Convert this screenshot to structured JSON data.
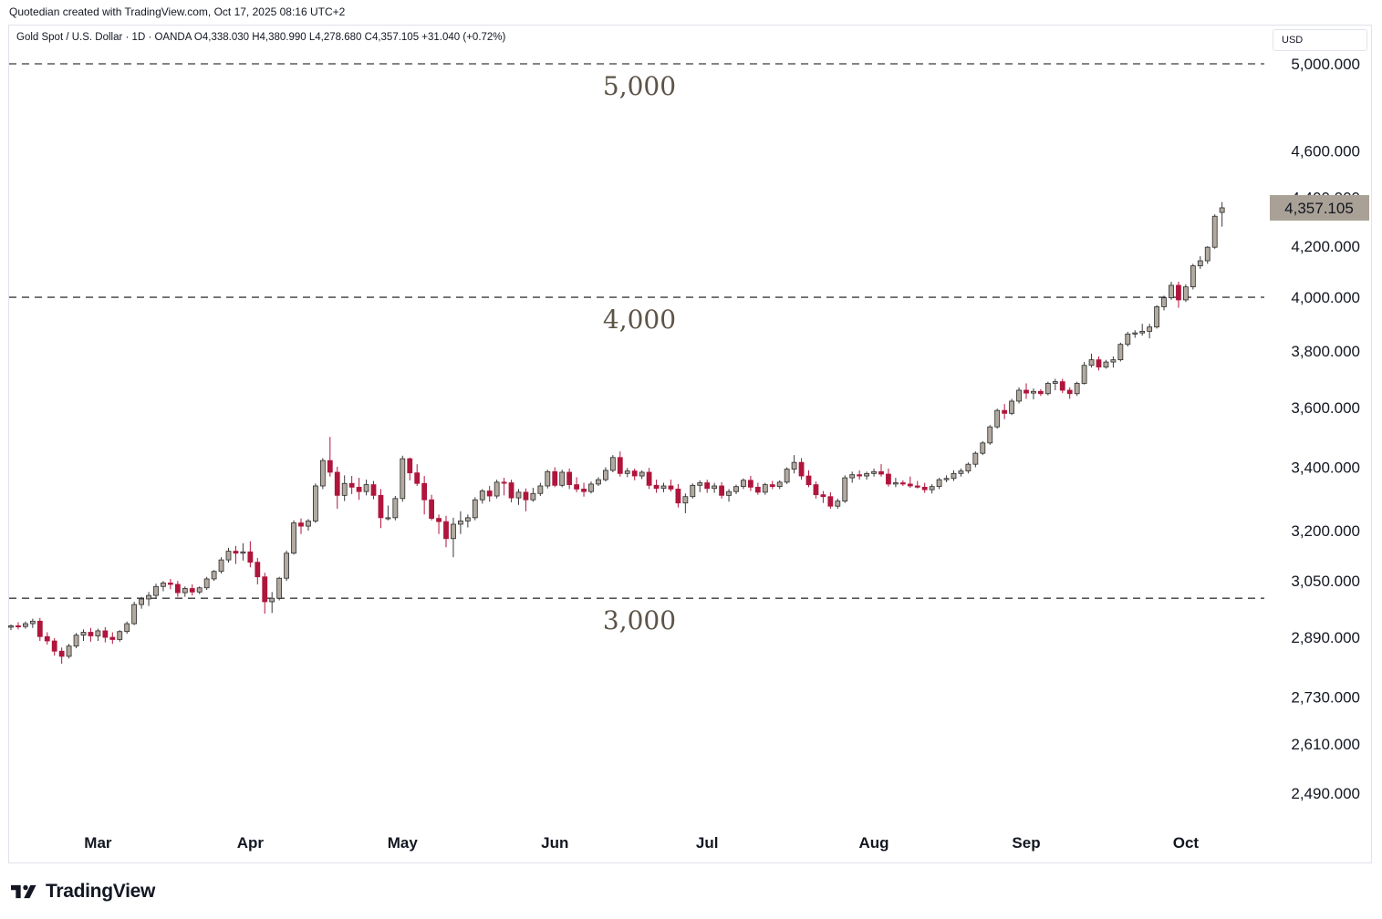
{
  "header": {
    "created_text": "Quotedian created with TradingView.com, Oct 17, 2025 08:16 UTC+2"
  },
  "legend": {
    "text": "Gold Spot / U.S. Dollar · 1D · OANDA  O4,338.030  H4,380.990  L4,278.680  C4,357.105  +31.040 (+0.72%)"
  },
  "currency_label": "USD",
  "brand": {
    "name": "TradingView",
    "logo_icon": "tradingview-logo-icon"
  },
  "colors": {
    "up_body": "#b2aaa0",
    "down_body": "#b0153c",
    "wick": "#3a3a3a",
    "price_tag": "#a9a196",
    "level_line": "#3a3a3a",
    "annotation_text": "#5d5448",
    "axis_text": "#131722"
  },
  "chart_data": {
    "type": "candlestick",
    "title": "Gold Spot / U.S. Dollar · 1D · OANDA",
    "x_axis": "time",
    "y_scale": "log",
    "ylim": [
      2400,
      5100
    ],
    "y_ticks": [
      "5,000.000",
      "4,600.000",
      "4,400.000",
      "4,200.000",
      "4,000.000",
      "3,800.000",
      "3,600.000",
      "3,400.000",
      "3,200.000",
      "3,050.000",
      "2,890.000",
      "2,730.000",
      "2,610.000",
      "2,490.000"
    ],
    "x_ticks": [
      {
        "label": "Mar",
        "index": 12
      },
      {
        "label": "Apr",
        "index": 33
      },
      {
        "label": "May",
        "index": 54
      },
      {
        "label": "Jun",
        "index": 75
      },
      {
        "label": "Jul",
        "index": 96
      },
      {
        "label": "Aug",
        "index": 119
      },
      {
        "label": "Sep",
        "index": 140
      },
      {
        "label": "Oct",
        "index": 162
      }
    ],
    "last_price": {
      "label": "4,357.105",
      "value": 4357.105
    },
    "levels": [
      {
        "value": 5000,
        "label": "5,000"
      },
      {
        "value": 4000,
        "label": "4,000"
      },
      {
        "value": 3000,
        "label": "3,000"
      }
    ],
    "ohlc": [
      [
        2918,
        2926,
        2910,
        2922
      ],
      [
        2922,
        2932,
        2912,
        2920
      ],
      [
        2920,
        2934,
        2914,
        2928
      ],
      [
        2928,
        2942,
        2916,
        2935
      ],
      [
        2935,
        2944,
        2880,
        2892
      ],
      [
        2892,
        2904,
        2870,
        2880
      ],
      [
        2880,
        2888,
        2840,
        2852
      ],
      [
        2852,
        2862,
        2818,
        2838
      ],
      [
        2838,
        2872,
        2832,
        2866
      ],
      [
        2866,
        2902,
        2860,
        2896
      ],
      [
        2896,
        2912,
        2880,
        2904
      ],
      [
        2904,
        2916,
        2878,
        2894
      ],
      [
        2894,
        2914,
        2880,
        2908
      ],
      [
        2908,
        2918,
        2876,
        2890
      ],
      [
        2890,
        2904,
        2872,
        2884
      ],
      [
        2884,
        2910,
        2878,
        2906
      ],
      [
        2906,
        2934,
        2900,
        2928
      ],
      [
        2928,
        2990,
        2924,
        2982
      ],
      [
        2982,
        3004,
        2970,
        2998
      ],
      [
        2998,
        3018,
        2978,
        3008
      ],
      [
        3008,
        3042,
        3000,
        3034
      ],
      [
        3034,
        3050,
        3020,
        3044
      ],
      [
        3044,
        3056,
        3026,
        3040
      ],
      [
        3040,
        3050,
        3004,
        3016
      ],
      [
        3016,
        3034,
        3004,
        3028
      ],
      [
        3028,
        3040,
        3008,
        3018
      ],
      [
        3018,
        3034,
        3012,
        3030
      ],
      [
        3030,
        3062,
        3024,
        3056
      ],
      [
        3056,
        3082,
        3050,
        3078
      ],
      [
        3078,
        3120,
        3072,
        3112
      ],
      [
        3112,
        3148,
        3104,
        3138
      ],
      [
        3138,
        3154,
        3100,
        3132
      ],
      [
        3132,
        3162,
        3110,
        3136
      ],
      [
        3136,
        3168,
        3090,
        3105
      ],
      [
        3105,
        3118,
        3040,
        3062
      ],
      [
        3062,
        3074,
        2956,
        2990
      ],
      [
        2990,
        3018,
        2958,
        3000
      ],
      [
        3000,
        3062,
        2994,
        3058
      ],
      [
        3058,
        3140,
        3050,
        3132
      ],
      [
        3132,
        3232,
        3128,
        3224
      ],
      [
        3224,
        3238,
        3190,
        3214
      ],
      [
        3214,
        3236,
        3200,
        3230
      ],
      [
        3230,
        3348,
        3224,
        3340
      ],
      [
        3340,
        3430,
        3330,
        3422
      ],
      [
        3422,
        3500,
        3370,
        3384
      ],
      [
        3384,
        3402,
        3268,
        3310
      ],
      [
        3310,
        3374,
        3292,
        3348
      ],
      [
        3348,
        3372,
        3314,
        3336
      ],
      [
        3336,
        3366,
        3296,
        3322
      ],
      [
        3322,
        3360,
        3310,
        3344
      ],
      [
        3344,
        3356,
        3298,
        3310
      ],
      [
        3310,
        3330,
        3208,
        3240
      ],
      [
        3240,
        3278,
        3232,
        3240
      ],
      [
        3240,
        3308,
        3232,
        3300
      ],
      [
        3300,
        3438,
        3290,
        3428
      ],
      [
        3428,
        3432,
        3358,
        3382
      ],
      [
        3382,
        3410,
        3340,
        3348
      ],
      [
        3348,
        3372,
        3250,
        3296
      ],
      [
        3296,
        3312,
        3232,
        3238
      ],
      [
        3238,
        3250,
        3190,
        3228
      ],
      [
        3228,
        3246,
        3150,
        3176
      ],
      [
        3176,
        3240,
        3120,
        3220
      ],
      [
        3220,
        3260,
        3190,
        3230
      ],
      [
        3230,
        3250,
        3210,
        3240
      ],
      [
        3240,
        3304,
        3232,
        3296
      ],
      [
        3296,
        3330,
        3284,
        3324
      ],
      [
        3324,
        3340,
        3290,
        3308
      ],
      [
        3308,
        3360,
        3300,
        3352
      ],
      [
        3352,
        3366,
        3310,
        3350
      ],
      [
        3350,
        3360,
        3288,
        3302
      ],
      [
        3302,
        3330,
        3280,
        3320
      ],
      [
        3320,
        3332,
        3260,
        3296
      ],
      [
        3296,
        3334,
        3290,
        3316
      ],
      [
        3316,
        3350,
        3308,
        3340
      ],
      [
        3340,
        3392,
        3332,
        3386
      ],
      [
        3386,
        3400,
        3336,
        3342
      ],
      [
        3342,
        3392,
        3336,
        3384
      ],
      [
        3384,
        3396,
        3330,
        3344
      ],
      [
        3344,
        3368,
        3320,
        3330
      ],
      [
        3330,
        3350,
        3306,
        3322
      ],
      [
        3322,
        3354,
        3316,
        3346
      ],
      [
        3346,
        3368,
        3340,
        3360
      ],
      [
        3360,
        3400,
        3354,
        3390
      ],
      [
        3390,
        3440,
        3384,
        3432
      ],
      [
        3432,
        3452,
        3370,
        3380
      ],
      [
        3380,
        3398,
        3368,
        3388
      ],
      [
        3388,
        3396,
        3358,
        3372
      ],
      [
        3372,
        3390,
        3362,
        3384
      ],
      [
        3384,
        3398,
        3330,
        3342
      ],
      [
        3342,
        3360,
        3318,
        3332
      ],
      [
        3332,
        3350,
        3320,
        3340
      ],
      [
        3340,
        3360,
        3322,
        3330
      ],
      [
        3330,
        3346,
        3272,
        3286
      ],
      [
        3286,
        3316,
        3254,
        3306
      ],
      [
        3306,
        3348,
        3300,
        3342
      ],
      [
        3342,
        3358,
        3320,
        3350
      ],
      [
        3350,
        3360,
        3318,
        3332
      ],
      [
        3332,
        3350,
        3318,
        3340
      ],
      [
        3340,
        3352,
        3300,
        3310
      ],
      [
        3310,
        3330,
        3290,
        3322
      ],
      [
        3322,
        3344,
        3314,
        3338
      ],
      [
        3338,
        3364,
        3330,
        3358
      ],
      [
        3358,
        3372,
        3324,
        3336
      ],
      [
        3336,
        3350,
        3312,
        3320
      ],
      [
        3320,
        3350,
        3312,
        3344
      ],
      [
        3344,
        3356,
        3330,
        3338
      ],
      [
        3338,
        3358,
        3330,
        3352
      ],
      [
        3352,
        3400,
        3346,
        3394
      ],
      [
        3394,
        3440,
        3380,
        3416
      ],
      [
        3416,
        3430,
        3360,
        3372
      ],
      [
        3372,
        3390,
        3336,
        3344
      ],
      [
        3344,
        3354,
        3300,
        3312
      ],
      [
        3312,
        3324,
        3286,
        3306
      ],
      [
        3306,
        3320,
        3268,
        3276
      ],
      [
        3276,
        3300,
        3268,
        3292
      ],
      [
        3292,
        3374,
        3286,
        3366
      ],
      [
        3366,
        3386,
        3350,
        3376
      ],
      [
        3376,
        3390,
        3360,
        3372
      ],
      [
        3372,
        3386,
        3360,
        3380
      ],
      [
        3380,
        3396,
        3370,
        3386
      ],
      [
        3386,
        3410,
        3370,
        3378
      ],
      [
        3378,
        3396,
        3338,
        3346
      ],
      [
        3346,
        3366,
        3336,
        3350
      ],
      [
        3350,
        3358,
        3340,
        3346
      ],
      [
        3346,
        3370,
        3334,
        3340
      ],
      [
        3340,
        3356,
        3332,
        3336
      ],
      [
        3336,
        3350,
        3318,
        3328
      ],
      [
        3328,
        3346,
        3316,
        3338
      ],
      [
        3338,
        3366,
        3330,
        3360
      ],
      [
        3360,
        3374,
        3352,
        3364
      ],
      [
        3364,
        3390,
        3356,
        3380
      ],
      [
        3380,
        3396,
        3370,
        3388
      ],
      [
        3388,
        3416,
        3380,
        3410
      ],
      [
        3410,
        3452,
        3400,
        3446
      ],
      [
        3446,
        3486,
        3440,
        3480
      ],
      [
        3480,
        3540,
        3474,
        3534
      ],
      [
        3534,
        3596,
        3528,
        3590
      ],
      [
        3590,
        3612,
        3560,
        3580
      ],
      [
        3580,
        3630,
        3574,
        3622
      ],
      [
        3622,
        3670,
        3614,
        3660
      ],
      [
        3660,
        3684,
        3630,
        3650
      ],
      [
        3650,
        3666,
        3628,
        3656
      ],
      [
        3656,
        3664,
        3640,
        3648
      ],
      [
        3648,
        3690,
        3642,
        3684
      ],
      [
        3684,
        3700,
        3660,
        3690
      ],
      [
        3690,
        3700,
        3650,
        3660
      ],
      [
        3660,
        3670,
        3630,
        3648
      ],
      [
        3648,
        3690,
        3640,
        3684
      ],
      [
        3684,
        3760,
        3680,
        3748
      ],
      [
        3748,
        3790,
        3740,
        3768
      ],
      [
        3768,
        3780,
        3730,
        3742
      ],
      [
        3742,
        3768,
        3736,
        3760
      ],
      [
        3760,
        3780,
        3740,
        3768
      ],
      [
        3768,
        3830,
        3762,
        3824
      ],
      [
        3824,
        3870,
        3816,
        3862
      ],
      [
        3862,
        3876,
        3848,
        3866
      ],
      [
        3866,
        3900,
        3856,
        3872
      ],
      [
        3872,
        3900,
        3846,
        3888
      ],
      [
        3888,
        3970,
        3882,
        3964
      ],
      [
        3964,
        4006,
        3950,
        3998
      ],
      [
        3998,
        4060,
        3990,
        4046
      ],
      [
        4046,
        4060,
        3960,
        3990
      ],
      [
        3990,
        4050,
        3982,
        4040
      ],
      [
        4040,
        4130,
        4030,
        4122
      ],
      [
        4122,
        4160,
        4110,
        4142
      ],
      [
        4142,
        4200,
        4130,
        4196
      ],
      [
        4196,
        4330,
        4190,
        4322
      ],
      [
        4338,
        4381,
        4279,
        4357
      ]
    ]
  }
}
